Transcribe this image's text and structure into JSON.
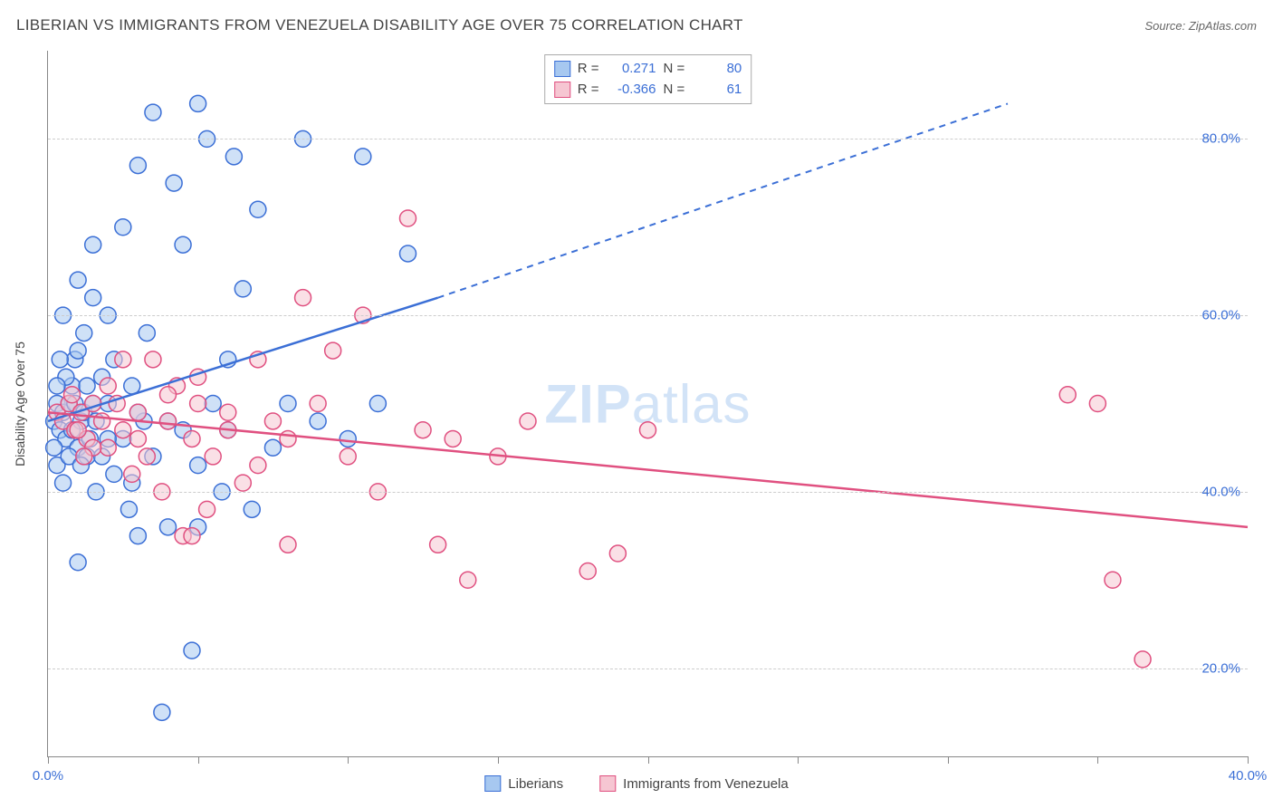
{
  "title": "LIBERIAN VS IMMIGRANTS FROM VENEZUELA DISABILITY AGE OVER 75 CORRELATION CHART",
  "source_label": "Source: ",
  "source_name": "ZipAtlas.com",
  "y_axis_title": "Disability Age Over 75",
  "watermark_a": "ZIP",
  "watermark_b": "atlas",
  "chart": {
    "type": "scatter",
    "xlim": [
      0,
      40
    ],
    "ylim": [
      10,
      90
    ],
    "x_ticks": [
      0,
      5,
      10,
      15,
      20,
      25,
      30,
      35,
      40
    ],
    "x_tick_labels_shown": {
      "0": "0.0%",
      "40": "40.0%"
    },
    "y_grid": [
      20,
      40,
      60,
      80
    ],
    "y_tick_labels": {
      "20": "20.0%",
      "40": "40.0%",
      "60": "60.0%",
      "80": "80.0%"
    },
    "background_color": "#ffffff",
    "grid_color": "#cccccc",
    "axis_color": "#888888",
    "marker_radius": 9,
    "marker_stroke_width": 1.5,
    "line_width": 2.5,
    "series": [
      {
        "name": "Liberians",
        "fill": "#a7c8f0",
        "stroke": "#3b6fd6",
        "fill_opacity": 0.55,
        "R": "0.271",
        "N": "80",
        "regression": {
          "x1": 0,
          "y1": 48,
          "x2_solid": 13,
          "y2_solid": 62,
          "x2_dash": 32,
          "y2_dash": 84
        },
        "points": [
          [
            0.2,
            48
          ],
          [
            0.3,
            50
          ],
          [
            0.4,
            47
          ],
          [
            0.5,
            49
          ],
          [
            0.6,
            46
          ],
          [
            0.7,
            50
          ],
          [
            0.8,
            52
          ],
          [
            0.9,
            55
          ],
          [
            1.0,
            45
          ],
          [
            1.1,
            48
          ],
          [
            1.2,
            58
          ],
          [
            1.3,
            44
          ],
          [
            1.5,
            62
          ],
          [
            1.6,
            40
          ],
          [
            1.8,
            53
          ],
          [
            2.0,
            60
          ],
          [
            2.2,
            42
          ],
          [
            2.5,
            70
          ],
          [
            2.7,
            38
          ],
          [
            3.0,
            77
          ],
          [
            3.2,
            48
          ],
          [
            3.5,
            83
          ],
          [
            3.8,
            15
          ],
          [
            4.0,
            36
          ],
          [
            4.2,
            75
          ],
          [
            4.5,
            68
          ],
          [
            4.8,
            22
          ],
          [
            5.0,
            84
          ],
          [
            5.3,
            80
          ],
          [
            5.5,
            50
          ],
          [
            5.8,
            40
          ],
          [
            6.0,
            47
          ],
          [
            6.2,
            78
          ],
          [
            6.5,
            63
          ],
          [
            6.8,
            38
          ],
          [
            7.0,
            72
          ],
          [
            5.0,
            36
          ],
          [
            7.5,
            45
          ],
          [
            8.0,
            50
          ],
          [
            8.5,
            80
          ],
          [
            9.0,
            48
          ],
          [
            10.0,
            46
          ],
          [
            10.5,
            78
          ],
          [
            11.0,
            50
          ],
          [
            12.0,
            67
          ],
          [
            3.0,
            35
          ],
          [
            4.0,
            48
          ],
          [
            0.3,
            43
          ],
          [
            0.4,
            55
          ],
          [
            0.5,
            41
          ],
          [
            0.6,
            53
          ],
          [
            0.7,
            44
          ],
          [
            0.8,
            47
          ],
          [
            0.9,
            50
          ],
          [
            1.0,
            56
          ],
          [
            1.1,
            43
          ],
          [
            1.2,
            49
          ],
          [
            1.3,
            52
          ],
          [
            1.4,
            46
          ],
          [
            1.5,
            50
          ],
          [
            1.6,
            48
          ],
          [
            1.8,
            44
          ],
          [
            2.0,
            50
          ],
          [
            2.2,
            55
          ],
          [
            2.5,
            46
          ],
          [
            2.8,
            52
          ],
          [
            3.0,
            49
          ],
          [
            3.3,
            58
          ],
          [
            3.5,
            44
          ],
          [
            1.0,
            32
          ],
          [
            4.5,
            47
          ],
          [
            5.0,
            43
          ],
          [
            6.0,
            55
          ],
          [
            0.5,
            60
          ],
          [
            1.0,
            64
          ],
          [
            1.5,
            68
          ],
          [
            2.0,
            46
          ],
          [
            2.8,
            41
          ],
          [
            0.2,
            45
          ],
          [
            0.3,
            52
          ]
        ]
      },
      {
        "name": "Immigrants from Venezuela",
        "fill": "#f6c6d2",
        "stroke": "#e05080",
        "fill_opacity": 0.55,
        "R": "-0.366",
        "N": "61",
        "regression": {
          "x1": 0,
          "y1": 49,
          "x2_solid": 40,
          "y2_solid": 36,
          "x2_dash": 40,
          "y2_dash": 36
        },
        "points": [
          [
            0.3,
            49
          ],
          [
            0.5,
            48
          ],
          [
            0.7,
            50
          ],
          [
            0.9,
            47
          ],
          [
            1.1,
            49
          ],
          [
            1.3,
            46
          ],
          [
            1.5,
            50
          ],
          [
            1.8,
            48
          ],
          [
            2.0,
            45
          ],
          [
            2.3,
            50
          ],
          [
            2.5,
            47
          ],
          [
            2.8,
            42
          ],
          [
            3.0,
            49
          ],
          [
            3.3,
            44
          ],
          [
            3.5,
            55
          ],
          [
            3.8,
            40
          ],
          [
            4.0,
            48
          ],
          [
            4.3,
            52
          ],
          [
            4.5,
            35
          ],
          [
            4.8,
            46
          ],
          [
            5.0,
            50
          ],
          [
            5.3,
            38
          ],
          [
            5.5,
            44
          ],
          [
            6.0,
            47
          ],
          [
            6.5,
            41
          ],
          [
            4.8,
            35
          ],
          [
            7.0,
            55
          ],
          [
            7.5,
            48
          ],
          [
            8.0,
            34
          ],
          [
            8.5,
            62
          ],
          [
            9.0,
            50
          ],
          [
            9.5,
            56
          ],
          [
            10.0,
            44
          ],
          [
            10.5,
            60
          ],
          [
            11.0,
            40
          ],
          [
            12.0,
            71
          ],
          [
            12.5,
            47
          ],
          [
            13.5,
            46
          ],
          [
            14.0,
            30
          ],
          [
            15.0,
            44
          ],
          [
            16.0,
            48
          ],
          [
            13.0,
            34
          ],
          [
            18.0,
            31
          ],
          [
            19.0,
            33
          ],
          [
            20.0,
            47
          ],
          [
            34.0,
            51
          ],
          [
            35.0,
            50
          ],
          [
            35.5,
            30
          ],
          [
            36.5,
            21
          ],
          [
            2.0,
            52
          ],
          [
            2.5,
            55
          ],
          [
            3.0,
            46
          ],
          [
            4.0,
            51
          ],
          [
            5.0,
            53
          ],
          [
            6.0,
            49
          ],
          [
            7.0,
            43
          ],
          [
            1.0,
            47
          ],
          [
            1.5,
            45
          ],
          [
            0.8,
            51
          ],
          [
            1.2,
            44
          ],
          [
            8.0,
            46
          ]
        ]
      }
    ]
  },
  "stats_box": {
    "r_label": "R =",
    "n_label": "N ="
  },
  "legend": {
    "series1": "Liberians",
    "series2": "Immigrants from Venezuela"
  }
}
